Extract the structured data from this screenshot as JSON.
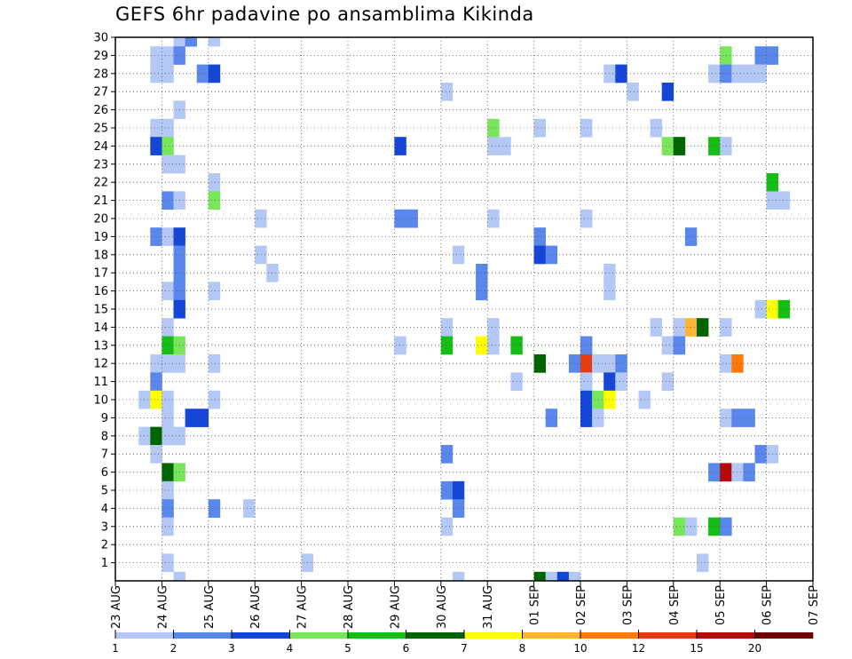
{
  "chart_data": {
    "type": "heatmap",
    "title": "GEFS 6hr padavine po ansamblima Kikinda",
    "xlabel": "",
    "ylabel": "",
    "x_ticks": [
      "23 AUG",
      "24 AUG",
      "25 AUG",
      "26 AUG",
      "27 AUG",
      "28 AUG",
      "29 AUG",
      "30 AUG",
      "31 AUG",
      "01 SEP",
      "02 SEP",
      "03 SEP",
      "04 SEP",
      "05 SEP",
      "06 SEP",
      "07 SEP"
    ],
    "y_ticks": [
      1,
      2,
      3,
      4,
      5,
      6,
      7,
      8,
      9,
      10,
      11,
      12,
      13,
      14,
      15,
      16,
      17,
      18,
      19,
      20,
      21,
      22,
      23,
      24,
      25,
      26,
      27,
      28,
      29,
      30
    ],
    "xlim_days": [
      0,
      15
    ],
    "ylim_members": [
      0,
      30
    ],
    "grid": true,
    "legend": {
      "position": "bottom",
      "labels": [
        "1",
        "2",
        "3",
        "4",
        "5",
        "6",
        "7",
        "8",
        "10",
        "12",
        "15",
        "20"
      ],
      "colors": [
        "#b4c8f5",
        "#5a87eb",
        "#1446d7",
        "#78e65a",
        "#14be14",
        "#006400",
        "#ffff00",
        "#ffb432",
        "#ff780a",
        "#e63c14",
        "#b40a0a",
        "#6e0000"
      ]
    },
    "cells": [
      [
        30,
        1.25,
        "#b4c8f5"
      ],
      [
        30,
        1.5,
        "#5a87eb"
      ],
      [
        30,
        2.0,
        "#b4c8f5"
      ],
      [
        29,
        0.75,
        "#b4c8f5"
      ],
      [
        29,
        1.0,
        "#b4c8f5"
      ],
      [
        29,
        1.25,
        "#5a87eb"
      ],
      [
        29,
        13.0,
        "#78e65a"
      ],
      [
        29,
        13.75,
        "#5a87eb"
      ],
      [
        29,
        14.0,
        "#5a87eb"
      ],
      [
        28,
        0.75,
        "#b4c8f5"
      ],
      [
        28,
        1.0,
        "#b4c8f5"
      ],
      [
        28,
        1.75,
        "#5a87eb"
      ],
      [
        28,
        2.0,
        "#1446d7"
      ],
      [
        28,
        10.5,
        "#b4c8f5"
      ],
      [
        28,
        10.75,
        "#1446d7"
      ],
      [
        28,
        12.75,
        "#b4c8f5"
      ],
      [
        28,
        13.0,
        "#5a87eb"
      ],
      [
        28,
        13.25,
        "#b4c8f5"
      ],
      [
        28,
        13.5,
        "#b4c8f5"
      ],
      [
        28,
        13.75,
        "#b4c8f5"
      ],
      [
        27,
        7.0,
        "#b4c8f5"
      ],
      [
        27,
        11.0,
        "#b4c8f5"
      ],
      [
        27,
        11.75,
        "#1446d7"
      ],
      [
        26,
        1.25,
        "#b4c8f5"
      ],
      [
        25,
        0.75,
        "#b4c8f5"
      ],
      [
        25,
        1.0,
        "#b4c8f5"
      ],
      [
        25,
        8.0,
        "#78e65a"
      ],
      [
        25,
        9.0,
        "#b4c8f5"
      ],
      [
        25,
        10.0,
        "#b4c8f5"
      ],
      [
        25,
        11.5,
        "#b4c8f5"
      ],
      [
        24,
        0.75,
        "#1446d7"
      ],
      [
        24,
        1.0,
        "#78e65a"
      ],
      [
        24,
        6.0,
        "#1446d7"
      ],
      [
        24,
        8.0,
        "#b4c8f5"
      ],
      [
        24,
        8.25,
        "#b4c8f5"
      ],
      [
        24,
        11.75,
        "#78e65a"
      ],
      [
        24,
        12.0,
        "#006400"
      ],
      [
        24,
        12.75,
        "#14be14"
      ],
      [
        24,
        13.0,
        "#b4c8f5"
      ],
      [
        23,
        1.0,
        "#b4c8f5"
      ],
      [
        23,
        1.25,
        "#b4c8f5"
      ],
      [
        22,
        2.0,
        "#b4c8f5"
      ],
      [
        22,
        14.0,
        "#14be14"
      ],
      [
        21,
        1.0,
        "#5a87eb"
      ],
      [
        21,
        1.25,
        "#b4c8f5"
      ],
      [
        21,
        2.0,
        "#78e65a"
      ],
      [
        21,
        14.0,
        "#b4c8f5"
      ],
      [
        21,
        14.25,
        "#b4c8f5"
      ],
      [
        20,
        3.0,
        "#b4c8f5"
      ],
      [
        20,
        6.0,
        "#5a87eb"
      ],
      [
        20,
        6.25,
        "#5a87eb"
      ],
      [
        20,
        8.0,
        "#b4c8f5"
      ],
      [
        20,
        10.0,
        "#b4c8f5"
      ],
      [
        19,
        0.75,
        "#5a87eb"
      ],
      [
        19,
        1.0,
        "#b4c8f5"
      ],
      [
        19,
        1.25,
        "#1446d7"
      ],
      [
        19,
        9.0,
        "#5a87eb"
      ],
      [
        19,
        12.25,
        "#5a87eb"
      ],
      [
        18,
        1.25,
        "#5a87eb"
      ],
      [
        18,
        3.0,
        "#b4c8f5"
      ],
      [
        18,
        7.25,
        "#b4c8f5"
      ],
      [
        18,
        9.0,
        "#1446d7"
      ],
      [
        18,
        9.25,
        "#5a87eb"
      ],
      [
        17,
        1.25,
        "#5a87eb"
      ],
      [
        17,
        3.25,
        "#b4c8f5"
      ],
      [
        17,
        7.75,
        "#5a87eb"
      ],
      [
        17,
        10.5,
        "#b4c8f5"
      ],
      [
        16,
        1.0,
        "#b4c8f5"
      ],
      [
        16,
        1.25,
        "#5a87eb"
      ],
      [
        16,
        2.0,
        "#b4c8f5"
      ],
      [
        16,
        7.75,
        "#5a87eb"
      ],
      [
        16,
        10.5,
        "#b4c8f5"
      ],
      [
        15,
        1.25,
        "#1446d7"
      ],
      [
        15,
        13.75,
        "#b4c8f5"
      ],
      [
        15,
        14.0,
        "#ffff00"
      ],
      [
        15,
        14.25,
        "#14be14"
      ],
      [
        14,
        1.0,
        "#b4c8f5"
      ],
      [
        14,
        7.0,
        "#b4c8f5"
      ],
      [
        14,
        8.0,
        "#b4c8f5"
      ],
      [
        14,
        11.5,
        "#b4c8f5"
      ],
      [
        14,
        12.0,
        "#b4c8f5"
      ],
      [
        14,
        12.25,
        "#ffb432"
      ],
      [
        14,
        12.5,
        "#006400"
      ],
      [
        14,
        13.0,
        "#b4c8f5"
      ],
      [
        13,
        1.0,
        "#14be14"
      ],
      [
        13,
        1.25,
        "#78e65a"
      ],
      [
        13,
        6.0,
        "#b4c8f5"
      ],
      [
        13,
        7.0,
        "#14be14"
      ],
      [
        13,
        7.75,
        "#ffff00"
      ],
      [
        13,
        8.0,
        "#b4c8f5"
      ],
      [
        13,
        8.5,
        "#14be14"
      ],
      [
        13,
        10.0,
        "#5a87eb"
      ],
      [
        13,
        11.75,
        "#b4c8f5"
      ],
      [
        13,
        12.0,
        "#5a87eb"
      ],
      [
        12,
        0.75,
        "#b4c8f5"
      ],
      [
        12,
        1.0,
        "#b4c8f5"
      ],
      [
        12,
        1.25,
        "#b4c8f5"
      ],
      [
        12,
        2.0,
        "#b4c8f5"
      ],
      [
        12,
        9.0,
        "#006400"
      ],
      [
        12,
        9.75,
        "#5a87eb"
      ],
      [
        12,
        10.0,
        "#e63c14"
      ],
      [
        12,
        10.25,
        "#b4c8f5"
      ],
      [
        12,
        10.5,
        "#b4c8f5"
      ],
      [
        12,
        10.75,
        "#5a87eb"
      ],
      [
        12,
        13.0,
        "#b4c8f5"
      ],
      [
        12,
        13.25,
        "#ff780a"
      ],
      [
        11,
        0.75,
        "#5a87eb"
      ],
      [
        11,
        8.5,
        "#b4c8f5"
      ],
      [
        11,
        10.0,
        "#b4c8f5"
      ],
      [
        11,
        10.5,
        "#1446d7"
      ],
      [
        11,
        10.75,
        "#b4c8f5"
      ],
      [
        11,
        11.75,
        "#b4c8f5"
      ],
      [
        10,
        0.5,
        "#b4c8f5"
      ],
      [
        10,
        0.75,
        "#ffff00"
      ],
      [
        10,
        1.0,
        "#b4c8f5"
      ],
      [
        10,
        2.0,
        "#b4c8f5"
      ],
      [
        10,
        10.0,
        "#1446d7"
      ],
      [
        10,
        10.25,
        "#78e65a"
      ],
      [
        10,
        10.5,
        "#ffff00"
      ],
      [
        10,
        11.25,
        "#b4c8f5"
      ],
      [
        9,
        1.0,
        "#b4c8f5"
      ],
      [
        9,
        1.5,
        "#1446d7"
      ],
      [
        9,
        1.75,
        "#1446d7"
      ],
      [
        9,
        9.25,
        "#5a87eb"
      ],
      [
        9,
        10.0,
        "#1446d7"
      ],
      [
        9,
        10.25,
        "#b4c8f5"
      ],
      [
        9,
        13.0,
        "#b4c8f5"
      ],
      [
        9,
        13.25,
        "#5a87eb"
      ],
      [
        9,
        13.5,
        "#5a87eb"
      ],
      [
        8,
        0.5,
        "#b4c8f5"
      ],
      [
        8,
        0.75,
        "#006400"
      ],
      [
        8,
        1.0,
        "#b4c8f5"
      ],
      [
        8,
        1.25,
        "#b4c8f5"
      ],
      [
        7,
        0.75,
        "#b4c8f5"
      ],
      [
        7,
        7.0,
        "#5a87eb"
      ],
      [
        7,
        13.75,
        "#5a87eb"
      ],
      [
        7,
        14.0,
        "#b4c8f5"
      ],
      [
        6,
        1.0,
        "#006400"
      ],
      [
        6,
        1.25,
        "#78e65a"
      ],
      [
        6,
        12.75,
        "#5a87eb"
      ],
      [
        6,
        13.0,
        "#b40a0a"
      ],
      [
        6,
        13.25,
        "#b4c8f5"
      ],
      [
        6,
        13.5,
        "#5a87eb"
      ],
      [
        5,
        1.0,
        "#b4c8f5"
      ],
      [
        5,
        7.0,
        "#5a87eb"
      ],
      [
        5,
        7.25,
        "#1446d7"
      ],
      [
        4,
        1.0,
        "#5a87eb"
      ],
      [
        4,
        2.0,
        "#5a87eb"
      ],
      [
        4,
        2.75,
        "#b4c8f5"
      ],
      [
        4,
        7.25,
        "#5a87eb"
      ],
      [
        3,
        1.0,
        "#b4c8f5"
      ],
      [
        3,
        7.0,
        "#b4c8f5"
      ],
      [
        3,
        12.0,
        "#78e65a"
      ],
      [
        3,
        12.25,
        "#b4c8f5"
      ],
      [
        3,
        12.75,
        "#14be14"
      ],
      [
        3,
        13.0,
        "#5a87eb"
      ],
      [
        1,
        1.0,
        "#b4c8f5"
      ],
      [
        1,
        4.0,
        "#b4c8f5"
      ],
      [
        1,
        12.5,
        "#b4c8f5"
      ],
      [
        0,
        1.25,
        "#b4c8f5"
      ],
      [
        0,
        7.25,
        "#b4c8f5"
      ],
      [
        0,
        9.0,
        "#006400"
      ],
      [
        0,
        9.25,
        "#b4c8f5"
      ],
      [
        0,
        9.5,
        "#1446d7"
      ],
      [
        0,
        9.75,
        "#b4c8f5"
      ]
    ]
  }
}
